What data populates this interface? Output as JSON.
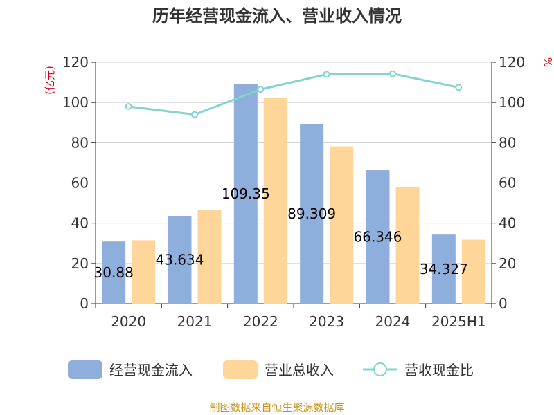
{
  "chart_data": {
    "type": "bar",
    "title": "历年经营现金流入、营业收入情况",
    "categories": [
      "2020",
      "2021",
      "2022",
      "2023",
      "2024",
      "2025H1"
    ],
    "y_left": {
      "unit": "(亿元)",
      "lim": [
        0,
        120
      ],
      "ticks": [
        "0",
        "20",
        "40",
        "60",
        "80",
        "100",
        "120"
      ]
    },
    "y_right": {
      "unit": "%",
      "lim": [
        0,
        120
      ],
      "ticks": [
        "0",
        "20",
        "40",
        "60",
        "80",
        "100",
        "120"
      ]
    },
    "series": [
      {
        "name": "经营现金流入",
        "type": "bar",
        "axis": "left",
        "color": "#8eaedb",
        "values": [
          30.88,
          43.634,
          109.35,
          89.309,
          66.346,
          34.327
        ],
        "labels": [
          "30.88",
          "43.634",
          "109.35",
          "89.309",
          "66.346",
          "34.327"
        ]
      },
      {
        "name": "营业总收入",
        "type": "bar",
        "axis": "left",
        "color": "#ffd699",
        "values": [
          31.5,
          46.5,
          102.5,
          78.2,
          57.9,
          31.8
        ]
      },
      {
        "name": "营收现金比",
        "type": "line",
        "axis": "right",
        "color": "#84d3d3",
        "values": [
          98,
          94,
          106.5,
          114,
          114.3,
          107.5
        ]
      }
    ],
    "grid": true,
    "legend_position": "bottom"
  },
  "source": "制图数据来自恒生聚源数据库"
}
